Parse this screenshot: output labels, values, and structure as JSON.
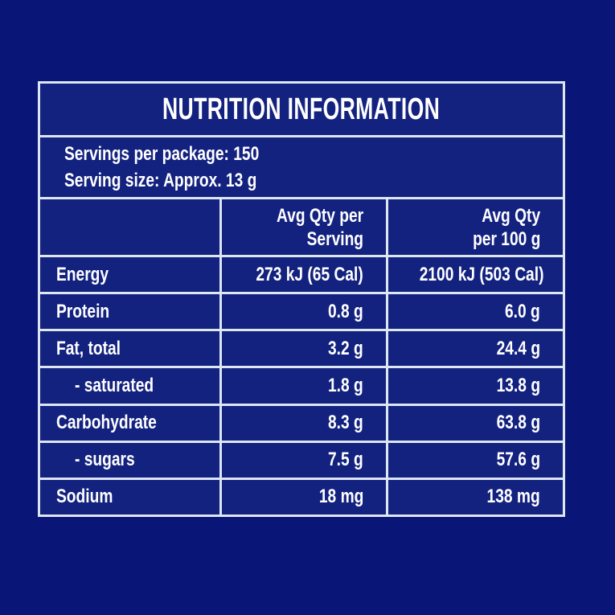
{
  "page": {
    "colors": {
      "page-bg": "#0a1578",
      "panel-bg": "#13227f",
      "line": "#dde6f3",
      "text": "#ffffff"
    }
  },
  "label": {
    "title": "NUTRITION INFORMATION",
    "servings_per_package": "Servings per package: 150",
    "serving_size": "Serving size: Approx. 13 g",
    "columns": {
      "per_serving_line1": "Avg Qty per",
      "per_serving_line2": "Serving",
      "per_100g_line1": "Avg Qty",
      "per_100g_line2": "per 100 g"
    },
    "rows": [
      {
        "nutrient": "Energy",
        "per_serving": "273 kJ (65 Cal)",
        "per_100g": "2100 kJ (503 Cal)",
        "indent": false
      },
      {
        "nutrient": "Protein",
        "per_serving": "0.8 g",
        "per_100g": "6.0 g",
        "indent": false
      },
      {
        "nutrient": "Fat, total",
        "per_serving": "3.2 g",
        "per_100g": "24.4 g",
        "indent": false
      },
      {
        "nutrient": "- saturated",
        "per_serving": "1.8 g",
        "per_100g": "13.8 g",
        "indent": true
      },
      {
        "nutrient": "Carbohydrate",
        "per_serving": "8.3 g",
        "per_100g": "63.8 g",
        "indent": false
      },
      {
        "nutrient": "- sugars",
        "per_serving": "7.5 g",
        "per_100g": "57.6 g",
        "indent": true
      },
      {
        "nutrient": "Sodium",
        "per_serving": "18 mg",
        "per_100g": "138 mg",
        "indent": false
      }
    ]
  }
}
